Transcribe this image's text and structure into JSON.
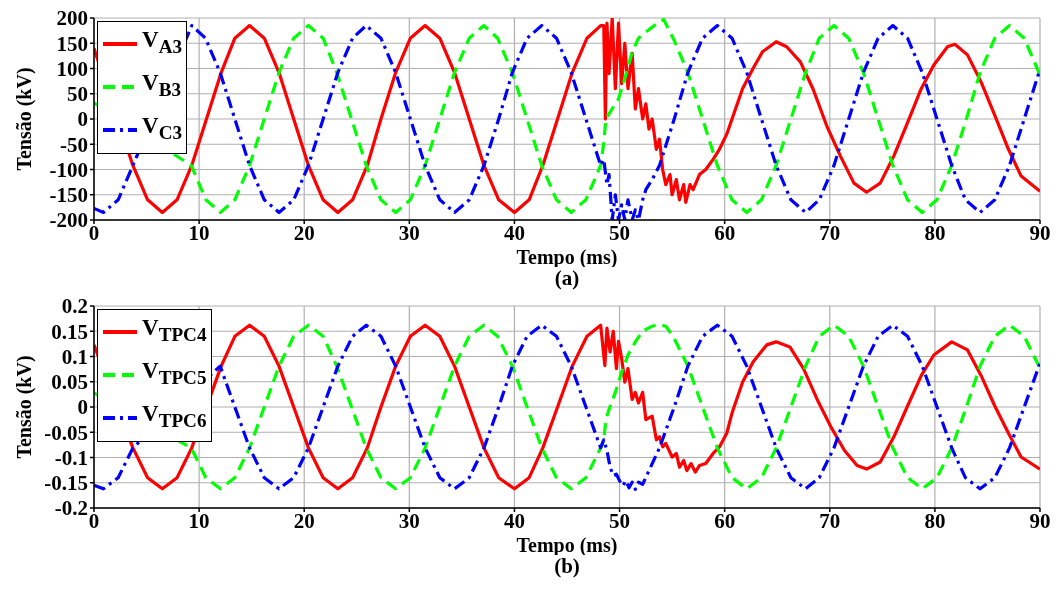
{
  "chart_data": [
    {
      "type": "line",
      "annotations": [
        "(a)"
      ],
      "xlabel": "Tempo (ms)",
      "ylabel": "Tensão (kV)",
      "xlim": [
        0,
        90
      ],
      "xticks": [
        0,
        10,
        20,
        30,
        40,
        50,
        60,
        70,
        80,
        90
      ],
      "ylim": [
        -200,
        200
      ],
      "yticks": [
        -200,
        -150,
        -100,
        -50,
        0,
        50,
        100,
        150,
        200
      ],
      "grid": true,
      "legend": "top left",
      "marker": "none",
      "series": [
        {
          "name": "V$_{A3}$",
          "color": "#ff0000",
          "line_style": "solid",
          "x": [
            0,
            0.88,
            2.3,
            3.7,
            5.1,
            6.5,
            7.9,
            9.3,
            10.7,
            12.1,
            13.4,
            14.8,
            16.2,
            17.6,
            19.0,
            20.4,
            21.8,
            23.2,
            24.6,
            26.0,
            27.3,
            28.7,
            30.1,
            31.5,
            32.9,
            34.3,
            35.7,
            37.1,
            38.5,
            40.0,
            41.4,
            42.7,
            44.1,
            45.5,
            46.9,
            48.2,
            48.5,
            48.65,
            48.8,
            49.0,
            49.3,
            49.6,
            49.9,
            50.2,
            50.5,
            50.8,
            51.2,
            51.5,
            51.8,
            52.2,
            52.5,
            52.8,
            53.1,
            53.5,
            53.8,
            54.1,
            54.4,
            54.8,
            55.0,
            55.4,
            55.7,
            56.1,
            56.3,
            56.7,
            57.0,
            57.6,
            58.2,
            58.9,
            59.5,
            60.2,
            60.7,
            61.7,
            62.7,
            63.6,
            64.9,
            65.9,
            67.2,
            68.4,
            69.7,
            71.0,
            72.3,
            73.5,
            74.8,
            76.1,
            77.4,
            78.7,
            79.9,
            81.2,
            81.9,
            83.1,
            84.4,
            85.7,
            87.0,
            88.2,
            90
          ],
          "values": [
            140,
            null,
            null,
            -92,
            -160,
            -185,
            -160,
            -92,
            0,
            92,
            160,
            185,
            160,
            92,
            0,
            -92,
            -160,
            -185,
            -160,
            -92,
            0,
            92,
            160,
            185,
            160,
            92,
            0,
            -92,
            -160,
            -185,
            -160,
            -92,
            0,
            92,
            160,
            185,
            185,
            0,
            190,
            90,
            200,
            60,
            190,
            70,
            150,
            60,
            130,
            20,
            60,
            0,
            30,
            -20,
            0,
            -60,
            -40,
            -100,
            -130,
            -110,
            -150,
            -120,
            -160,
            -130,
            -165,
            -130,
            -140,
            -110,
            -100,
            -80,
            -60,
            -30,
            0,
            60,
            100,
            133,
            153,
            143,
            113,
            60,
            -13,
            -73,
            -127,
            -145,
            -127,
            -73,
            -7,
            60,
            107,
            143,
            148,
            127,
            73,
            7,
            -60,
            -113,
            -143
          ]
        },
        {
          "name": "V$_{B3}$",
          "color": "#00ff00",
          "line_style": "dashed",
          "x": [
            0,
            0.92,
            2.31,
            3.7,
            5.09,
            6.48,
            7.87,
            9.25,
            10.64,
            12.03,
            13.4,
            14.8,
            16.2,
            17.6,
            19.0,
            20.4,
            21.8,
            23.1,
            24.5,
            25.9,
            27.3,
            28.7,
            30.1,
            31.5,
            32.9,
            34.3,
            35.7,
            37.1,
            38.4,
            39.8,
            41.2,
            42.6,
            44.0,
            45.4,
            46.8,
            48.2,
            48.5,
            48.7,
            49.3,
            49.9,
            50.5,
            51.2,
            51.8,
            52.8,
            53.8,
            54.2,
            55.1,
            56.5,
            57.9,
            59.3,
            60.7,
            62.1,
            63.5,
            64.9,
            66.3,
            67.7,
            69.0,
            70.4,
            71.8,
            73.2,
            74.6,
            76.0,
            77.4,
            78.8,
            80.2,
            81.6,
            83.0,
            84.3,
            85.7,
            87.1,
            88.5,
            89.9,
            90
          ],
          "values": [
            32,
            null,
            null,
            null,
            null,
            null,
            null,
            -92,
            -160,
            -185,
            -160,
            -92,
            0,
            92,
            160,
            185,
            160,
            92,
            0,
            -92,
            -160,
            -185,
            -160,
            -92,
            0,
            92,
            160,
            185,
            160,
            92,
            0,
            -92,
            -160,
            -185,
            -160,
            -92,
            -47,
            0,
            20,
            40,
            80,
            133,
            160,
            177,
            193,
            197,
            160,
            92,
            0,
            -92,
            -160,
            -185,
            -160,
            -92,
            0,
            92,
            160,
            185,
            160,
            92,
            0,
            -92,
            -160,
            -185,
            -160,
            -92,
            0,
            92,
            160,
            185,
            160,
            92,
            88
          ]
        },
        {
          "name": "V$_{C3}$",
          "color": "#0000ff",
          "line_style": "dashdot",
          "x": [
            0,
            0.9,
            2.3,
            3.7,
            5.1,
            6.5,
            7.9,
            9.3,
            10.6,
            12.0,
            13.4,
            14.8,
            16.2,
            17.6,
            19.0,
            20.4,
            21.8,
            23.2,
            24.6,
            25.9,
            27.3,
            28.7,
            30.1,
            31.5,
            32.9,
            34.3,
            35.7,
            37.1,
            38.5,
            39.8,
            41.2,
            42.6,
            44.0,
            45.4,
            46.8,
            48.2,
            48.5,
            48.8,
            49.0,
            49.3,
            49.6,
            49.9,
            50.2,
            50.5,
            50.8,
            51.2,
            51.5,
            51.8,
            52.2,
            52.5,
            53.1,
            53.8,
            55.2,
            56.5,
            57.9,
            59.3,
            60.7,
            62.1,
            63.5,
            64.9,
            66.3,
            67.7,
            69.0,
            70.4,
            71.8,
            73.2,
            74.6,
            76.0,
            77.4,
            78.8,
            80.2,
            81.6,
            82.9,
            84.3,
            85.7,
            87.1,
            88.5,
            89.9,
            90
          ],
          "values": [
            -177,
            -185,
            -160,
            -92,
            null,
            null,
            null,
            185,
            160,
            92,
            0,
            -92,
            -160,
            -185,
            -160,
            -92,
            0,
            92,
            160,
            185,
            160,
            92,
            0,
            -92,
            -160,
            -185,
            -160,
            -92,
            0,
            92,
            160,
            185,
            160,
            92,
            0,
            -92,
            -80,
            -130,
            -110,
            -200,
            -150,
            -200,
            -170,
            -200,
            -160,
            -200,
            -180,
            -200,
            -160,
            -140,
            -120,
            -92,
            0,
            92,
            160,
            185,
            160,
            92,
            0,
            -92,
            -160,
            -185,
            -160,
            -92,
            0,
            92,
            160,
            185,
            160,
            92,
            0,
            -92,
            -160,
            -185,
            -160,
            -92,
            0,
            92,
            98
          ]
        }
      ]
    },
    {
      "type": "line",
      "annotations": [
        "(b)"
      ],
      "xlabel": "Tempo (ms)",
      "ylabel": "Tensão (kV)",
      "xlim": [
        0,
        90
      ],
      "xticks": [
        0,
        10,
        20,
        30,
        40,
        50,
        60,
        70,
        80,
        90
      ],
      "ylim": [
        -0.2,
        0.2
      ],
      "yticks": [
        -0.2,
        -0.15,
        -0.1,
        -0.05,
        0,
        0.05,
        0.1,
        0.15,
        0.2
      ],
      "grid": true,
      "legend": "top left",
      "marker": "none",
      "series": [
        {
          "name": "V$_{TPC4}$",
          "color": "#ff0000",
          "line_style": "solid",
          "x": [
            0,
            0.88,
            2.3,
            3.7,
            5.1,
            6.5,
            7.9,
            9.3,
            10.7,
            12.1,
            13.4,
            14.8,
            16.2,
            17.6,
            19.0,
            20.4,
            21.8,
            23.2,
            24.6,
            26.0,
            27.3,
            28.7,
            30.1,
            31.5,
            32.9,
            34.3,
            35.7,
            37.1,
            38.5,
            40.0,
            41.4,
            42.7,
            44.1,
            45.5,
            46.9,
            48.2,
            48.6,
            48.8,
            49.1,
            49.4,
            49.7,
            49.9,
            50.2,
            50.5,
            50.8,
            51.2,
            51.5,
            51.8,
            52.2,
            52.5,
            53.1,
            53.5,
            53.8,
            54.1,
            54.4,
            55.0,
            55.4,
            55.7,
            56.1,
            56.4,
            56.8,
            57.2,
            57.6,
            58.2,
            58.9,
            59.5,
            60.2,
            60.7,
            61.7,
            62.7,
            64.0,
            64.9,
            66.2,
            67.5,
            68.8,
            70.1,
            71.4,
            72.6,
            73.5,
            74.8,
            76.1,
            77.4,
            78.7,
            79.9,
            81.6,
            83.1,
            84.4,
            85.7,
            87.0,
            88.2,
            90
          ],
          "values": [
            0.123,
            null,
            null,
            -0.081,
            -0.14,
            -0.162,
            -0.14,
            -0.081,
            null,
            0.081,
            0.14,
            0.162,
            0.14,
            0.081,
            0,
            -0.081,
            -0.14,
            -0.162,
            -0.14,
            -0.081,
            0,
            0.081,
            0.14,
            0.162,
            0.14,
            0.081,
            0,
            -0.081,
            -0.14,
            -0.162,
            -0.14,
            -0.081,
            0,
            0.081,
            0.14,
            0.162,
            0.082,
            0.156,
            0.109,
            0.15,
            0.076,
            0.13,
            0.096,
            0.049,
            0.076,
            0.015,
            0.029,
            0.008,
            0.029,
            -0.025,
            -0.018,
            -0.065,
            -0.059,
            -0.079,
            -0.072,
            -0.099,
            -0.092,
            -0.119,
            -0.106,
            -0.126,
            -0.112,
            -0.129,
            -0.116,
            -0.112,
            -0.092,
            -0.079,
            -0.052,
            -0.012,
            0.049,
            0.089,
            0.123,
            0.129,
            0.119,
            0.076,
            0.015,
            -0.039,
            -0.086,
            -0.116,
            -0.123,
            -0.109,
            -0.059,
            0.002,
            0.062,
            0.103,
            0.129,
            0.113,
            0.062,
            0.002,
            -0.052,
            -0.099,
            -0.123
          ]
        },
        {
          "name": "V$_{TPC5}$",
          "color": "#00ff00",
          "line_style": "dashed",
          "x": [
            0,
            0.92,
            2.31,
            3.7,
            5.09,
            6.48,
            7.87,
            9.25,
            10.64,
            12.03,
            13.4,
            14.8,
            16.2,
            17.6,
            19.0,
            20.4,
            21.8,
            23.1,
            24.5,
            25.9,
            27.3,
            28.7,
            30.1,
            31.5,
            32.9,
            34.3,
            35.7,
            37.1,
            38.4,
            39.8,
            41.2,
            42.6,
            44.0,
            45.4,
            46.8,
            48.2,
            48.5,
            48.7,
            49.0,
            49.6,
            50.2,
            50.8,
            51.5,
            52.2,
            53.1,
            53.8,
            54.4,
            55.1,
            56.5,
            57.9,
            59.3,
            60.7,
            62.1,
            63.5,
            64.9,
            66.3,
            67.7,
            69.0,
            70.4,
            71.8,
            73.2,
            74.6,
            76.0,
            77.4,
            78.8,
            80.2,
            81.6,
            83.0,
            84.3,
            85.7,
            87.1,
            88.5,
            89.9,
            90
          ],
          "values": [
            0.028,
            null,
            null,
            null,
            null,
            null,
            null,
            -0.081,
            -0.14,
            -0.162,
            -0.14,
            -0.081,
            0,
            0.081,
            0.14,
            0.162,
            0.14,
            0.081,
            0,
            -0.081,
            -0.14,
            -0.162,
            -0.14,
            -0.081,
            0,
            0.081,
            0.14,
            0.162,
            0.14,
            0.081,
            0,
            -0.081,
            -0.14,
            -0.162,
            -0.14,
            -0.081,
            -0.065,
            -0.025,
            -0.005,
            0.029,
            0.069,
            0.103,
            0.129,
            0.15,
            0.16,
            0.163,
            0.16,
            0.14,
            0.081,
            0,
            -0.081,
            -0.14,
            -0.162,
            -0.14,
            -0.081,
            0,
            0.081,
            0.14,
            0.162,
            0.14,
            0.081,
            0,
            -0.081,
            -0.14,
            -0.162,
            -0.14,
            -0.081,
            0,
            0.081,
            0.14,
            0.162,
            0.14,
            0.081,
            0.077
          ]
        },
        {
          "name": "V$_{TPC6}$",
          "color": "#0000ff",
          "line_style": "dashdot",
          "x": [
            0,
            0.9,
            2.3,
            3.7,
            5.1,
            6.5,
            7.9,
            9.3,
            10.6,
            12.0,
            13.4,
            14.8,
            16.2,
            17.6,
            19.0,
            20.4,
            21.8,
            23.2,
            24.6,
            25.9,
            27.3,
            28.7,
            30.1,
            31.5,
            32.9,
            34.3,
            35.7,
            37.1,
            38.5,
            39.8,
            41.2,
            42.6,
            44.0,
            45.4,
            46.8,
            48.2,
            48.5,
            48.8,
            49.1,
            49.4,
            49.7,
            50.0,
            50.3,
            50.6,
            50.9,
            51.2,
            51.5,
            51.8,
            52.2,
            52.6,
            53.8,
            55.2,
            56.5,
            57.9,
            59.3,
            60.7,
            62.1,
            63.5,
            64.9,
            66.3,
            67.7,
            69.0,
            70.4,
            71.8,
            73.2,
            74.6,
            76.0,
            77.4,
            78.8,
            80.2,
            81.6,
            82.9,
            84.3,
            85.7,
            87.1,
            88.5,
            89.9,
            90
          ],
          "values": [
            -0.155,
            -0.162,
            -0.14,
            -0.081,
            null,
            null,
            null,
            null,
            null,
            0.081,
            0,
            -0.081,
            -0.14,
            -0.162,
            -0.14,
            -0.081,
            0,
            0.081,
            0.14,
            0.162,
            0.14,
            0.081,
            0,
            -0.081,
            -0.14,
            -0.162,
            -0.14,
            -0.081,
            0,
            0.081,
            0.14,
            0.162,
            0.14,
            0.081,
            0,
            -0.081,
            -0.065,
            -0.086,
            -0.119,
            -0.136,
            -0.133,
            -0.146,
            -0.156,
            -0.146,
            -0.16,
            -0.149,
            -0.163,
            -0.149,
            -0.153,
            -0.135,
            -0.081,
            0,
            0.081,
            0.14,
            0.162,
            0.14,
            0.081,
            0,
            -0.081,
            -0.14,
            -0.162,
            -0.14,
            -0.081,
            0,
            0.081,
            0.14,
            0.162,
            0.14,
            0.081,
            0,
            -0.081,
            -0.14,
            -0.162,
            -0.14,
            -0.081,
            0,
            0.081,
            0.086
          ]
        }
      ]
    }
  ]
}
